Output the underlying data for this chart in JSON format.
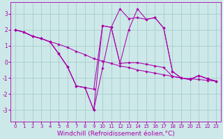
{
  "background_color": "#cce8e8",
  "grid_color": "#aacccc",
  "line_color": "#aa00aa",
  "marker_color": "#aa00aa",
  "xlabel": "Windchill (Refroidissement éolien,°C)",
  "xlabel_fontsize": 6.5,
  "xlim": [
    -0.5,
    23.5
  ],
  "ylim": [
    -3.7,
    3.7
  ],
  "yticks": [
    -3,
    -2,
    -1,
    0,
    1,
    2,
    3
  ],
  "xticks": [
    0,
    1,
    2,
    3,
    4,
    5,
    6,
    7,
    8,
    9,
    10,
    11,
    12,
    13,
    14,
    15,
    16,
    17,
    18,
    19,
    20,
    21,
    22,
    23
  ],
  "series": [
    [
      2.0,
      1.85,
      1.6,
      1.45,
      1.25,
      1.1,
      0.9,
      0.65,
      0.45,
      0.2,
      0.05,
      -0.1,
      -0.25,
      -0.35,
      -0.5,
      -0.6,
      -0.7,
      -0.8,
      -0.9,
      -1.0,
      -1.05,
      -1.1,
      -1.15,
      -1.2
    ],
    [
      2.0,
      1.85,
      1.6,
      1.45,
      1.25,
      0.5,
      -0.3,
      -1.5,
      -1.6,
      -1.7,
      2.25,
      2.15,
      -0.1,
      -0.05,
      -0.05,
      -0.15,
      -0.25,
      -0.35,
      -0.9,
      -1.0,
      -1.1,
      -0.85,
      -1.05,
      -1.2
    ],
    [
      2.0,
      1.85,
      1.6,
      1.45,
      1.25,
      0.5,
      -0.3,
      -1.5,
      -1.6,
      -3.0,
      2.25,
      2.15,
      -0.1,
      2.0,
      3.3,
      2.65,
      2.75,
      2.1,
      -0.6,
      -1.0,
      -1.1,
      -0.85,
      -1.05,
      -1.2
    ],
    [
      2.0,
      1.85,
      1.6,
      1.45,
      1.25,
      0.5,
      -0.3,
      -1.5,
      -1.6,
      -3.0,
      -0.4,
      2.15,
      3.3,
      2.7,
      2.75,
      2.65,
      2.75,
      2.1,
      -0.6,
      -1.0,
      -1.1,
      -0.85,
      -1.05,
      -1.2
    ]
  ]
}
